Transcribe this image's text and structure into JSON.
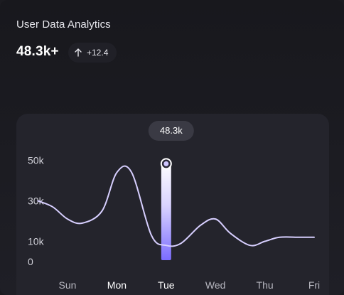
{
  "header": {
    "title": "User Data Analytics",
    "metric": "48.3k+",
    "delta_icon": "arrow-up-icon",
    "delta": "+12.4"
  },
  "tooltip": {
    "label": "48.3k"
  },
  "colors": {
    "background": "#1b1b20",
    "panel": "#24242c",
    "line": "#d7cfff",
    "highlight_top": "#ffffff",
    "highlight_bottom": "#7b6cff"
  },
  "chart_data": {
    "type": "line",
    "categories": [
      "Sun",
      "Mon",
      "Tue",
      "Wed",
      "Thu",
      "Fri"
    ],
    "y_ticks": [
      "50k",
      "30k",
      "10k",
      "0"
    ],
    "y_tick_values": [
      50,
      30,
      10,
      0
    ],
    "ylim": [
      0,
      60
    ],
    "series": [
      {
        "x": [
          -0.6,
          -0.3,
          0.0,
          0.3,
          0.7,
          1.0,
          1.3,
          1.7,
          2.0,
          2.3,
          2.7,
          3.0,
          3.3,
          3.7,
          4.0,
          4.3,
          4.7,
          5.0
        ],
        "y": [
          30,
          27,
          21,
          19,
          25,
          44,
          44,
          13,
          8,
          9,
          18,
          21,
          14,
          8,
          10,
          12,
          12,
          12
        ]
      }
    ],
    "highlight": {
      "category": "Tue",
      "value": 48.3
    },
    "active_labels": [
      "Mon",
      "Tue"
    ],
    "grid": false
  }
}
